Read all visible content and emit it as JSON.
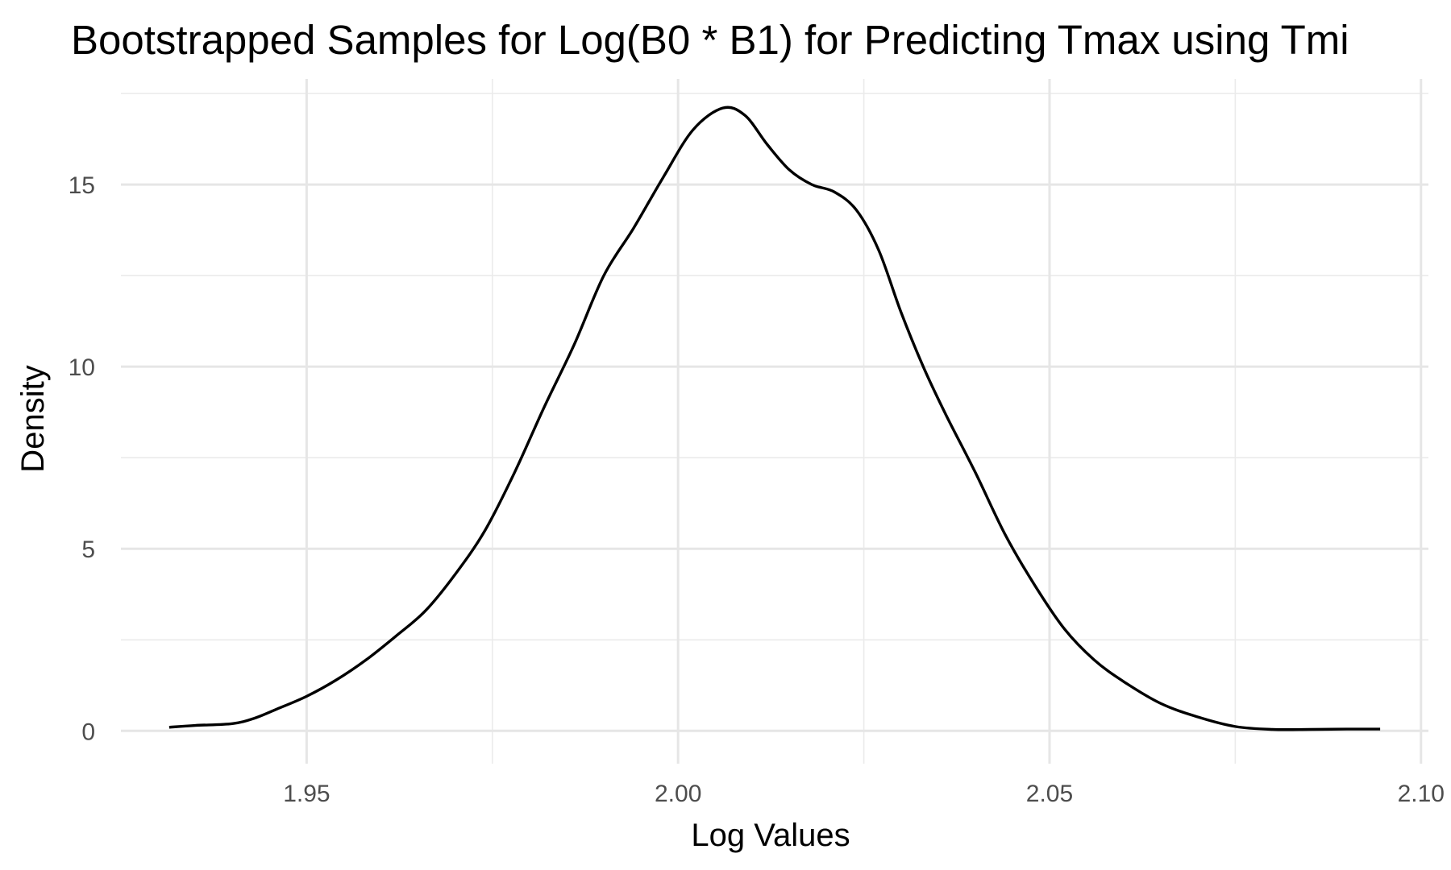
{
  "chart_data": {
    "type": "line",
    "title": "Bootstrapped Samples for Log(B0 * B1) for Predicting Tmax using Tmi",
    "xlabel": "Log Values",
    "ylabel": "Density",
    "xlim": [
      1.925,
      2.101
    ],
    "ylim": [
      -0.9,
      17.9
    ],
    "xticks": [
      1.95,
      2.0,
      2.05,
      2.1
    ],
    "xtick_labels": [
      "1.95",
      "2.00",
      "2.05",
      "2.10"
    ],
    "yticks": [
      0,
      5,
      10,
      15
    ],
    "ytick_labels": [
      "0",
      "5",
      "10",
      "15"
    ],
    "grid": true,
    "series": [
      {
        "color": "#000000",
        "x": [
          1.9315,
          1.935,
          1.94,
          1.943,
          1.946,
          1.95,
          1.954,
          1.958,
          1.962,
          1.966,
          1.97,
          1.974,
          1.978,
          1.982,
          1.986,
          1.99,
          1.994,
          1.998,
          2.002,
          2.006,
          2.009,
          2.012,
          2.015,
          2.018,
          2.021,
          2.024,
          2.027,
          2.03,
          2.033,
          2.036,
          2.04,
          2.044,
          2.048,
          2.052,
          2.056,
          2.06,
          2.065,
          2.07,
          2.075,
          2.08,
          2.085,
          2.09,
          2.0945
        ],
        "y": [
          0.1,
          0.15,
          0.2,
          0.35,
          0.6,
          0.95,
          1.4,
          1.95,
          2.6,
          3.3,
          4.3,
          5.5,
          7.1,
          8.9,
          10.6,
          12.5,
          13.8,
          15.2,
          16.5,
          17.1,
          16.9,
          16.1,
          15.4,
          15.0,
          14.8,
          14.3,
          13.2,
          11.5,
          10.0,
          8.7,
          7.1,
          5.4,
          4.0,
          2.8,
          1.95,
          1.35,
          0.75,
          0.38,
          0.12,
          0.04,
          0.04,
          0.05,
          0.05
        ]
      }
    ]
  }
}
